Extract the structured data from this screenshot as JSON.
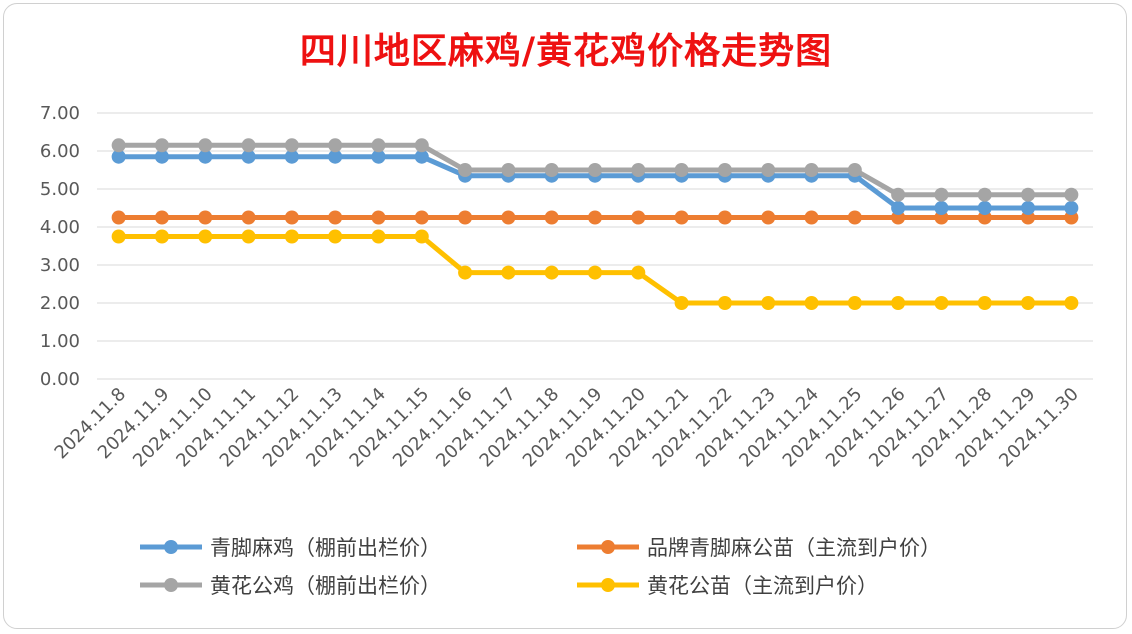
{
  "chart_data": {
    "type": "line",
    "title": "四川地区麻鸡/黄花鸡价格走势图",
    "xlabel": "",
    "ylabel": "",
    "ylim": [
      0,
      7
    ],
    "yticks": [
      "0.00",
      "1.00",
      "2.00",
      "3.00",
      "4.00",
      "5.00",
      "6.00",
      "7.00"
    ],
    "grid": true,
    "legend_position": "bottom",
    "categories": [
      "2024.11.8",
      "2024.11.9",
      "2024.11.10",
      "2024.11.11",
      "2024.11.12",
      "2024.11.13",
      "2024.11.14",
      "2024.11.15",
      "2024.11.16",
      "2024.11.17",
      "2024.11.18",
      "2024.11.19",
      "2024.11.20",
      "2024.11.21",
      "2024.11.22",
      "2024.11.23",
      "2024.11.24",
      "2024.11.25",
      "2024.11.26",
      "2024.11.27",
      "2024.11.28",
      "2024.11.29",
      "2024.11.30"
    ],
    "series": [
      {
        "name": "青脚麻鸡（棚前出栏价）",
        "color": "#5b9bd5",
        "values": [
          5.85,
          5.85,
          5.85,
          5.85,
          5.85,
          5.85,
          5.85,
          5.85,
          5.35,
          5.35,
          5.35,
          5.35,
          5.35,
          5.35,
          5.35,
          5.35,
          5.35,
          5.35,
          4.5,
          4.5,
          4.5,
          4.5,
          4.5
        ]
      },
      {
        "name": "品牌青脚麻公苗（主流到户价）",
        "color": "#ed7d31",
        "values": [
          4.25,
          4.25,
          4.25,
          4.25,
          4.25,
          4.25,
          4.25,
          4.25,
          4.25,
          4.25,
          4.25,
          4.25,
          4.25,
          4.25,
          4.25,
          4.25,
          4.25,
          4.25,
          4.25,
          4.25,
          4.25,
          4.25,
          4.25
        ]
      },
      {
        "name": "黄花公鸡（棚前出栏价）",
        "color": "#a5a5a5",
        "values": [
          6.15,
          6.15,
          6.15,
          6.15,
          6.15,
          6.15,
          6.15,
          6.15,
          5.5,
          5.5,
          5.5,
          5.5,
          5.5,
          5.5,
          5.5,
          5.5,
          5.5,
          5.5,
          4.85,
          4.85,
          4.85,
          4.85,
          4.85
        ]
      },
      {
        "name": "黄花公苗（主流到户价）",
        "color": "#ffc000",
        "values": [
          3.75,
          3.75,
          3.75,
          3.75,
          3.75,
          3.75,
          3.75,
          3.75,
          2.8,
          2.8,
          2.8,
          2.8,
          2.8,
          2.0,
          2.0,
          2.0,
          2.0,
          2.0,
          2.0,
          2.0,
          2.0,
          2.0,
          2.0
        ]
      }
    ]
  }
}
